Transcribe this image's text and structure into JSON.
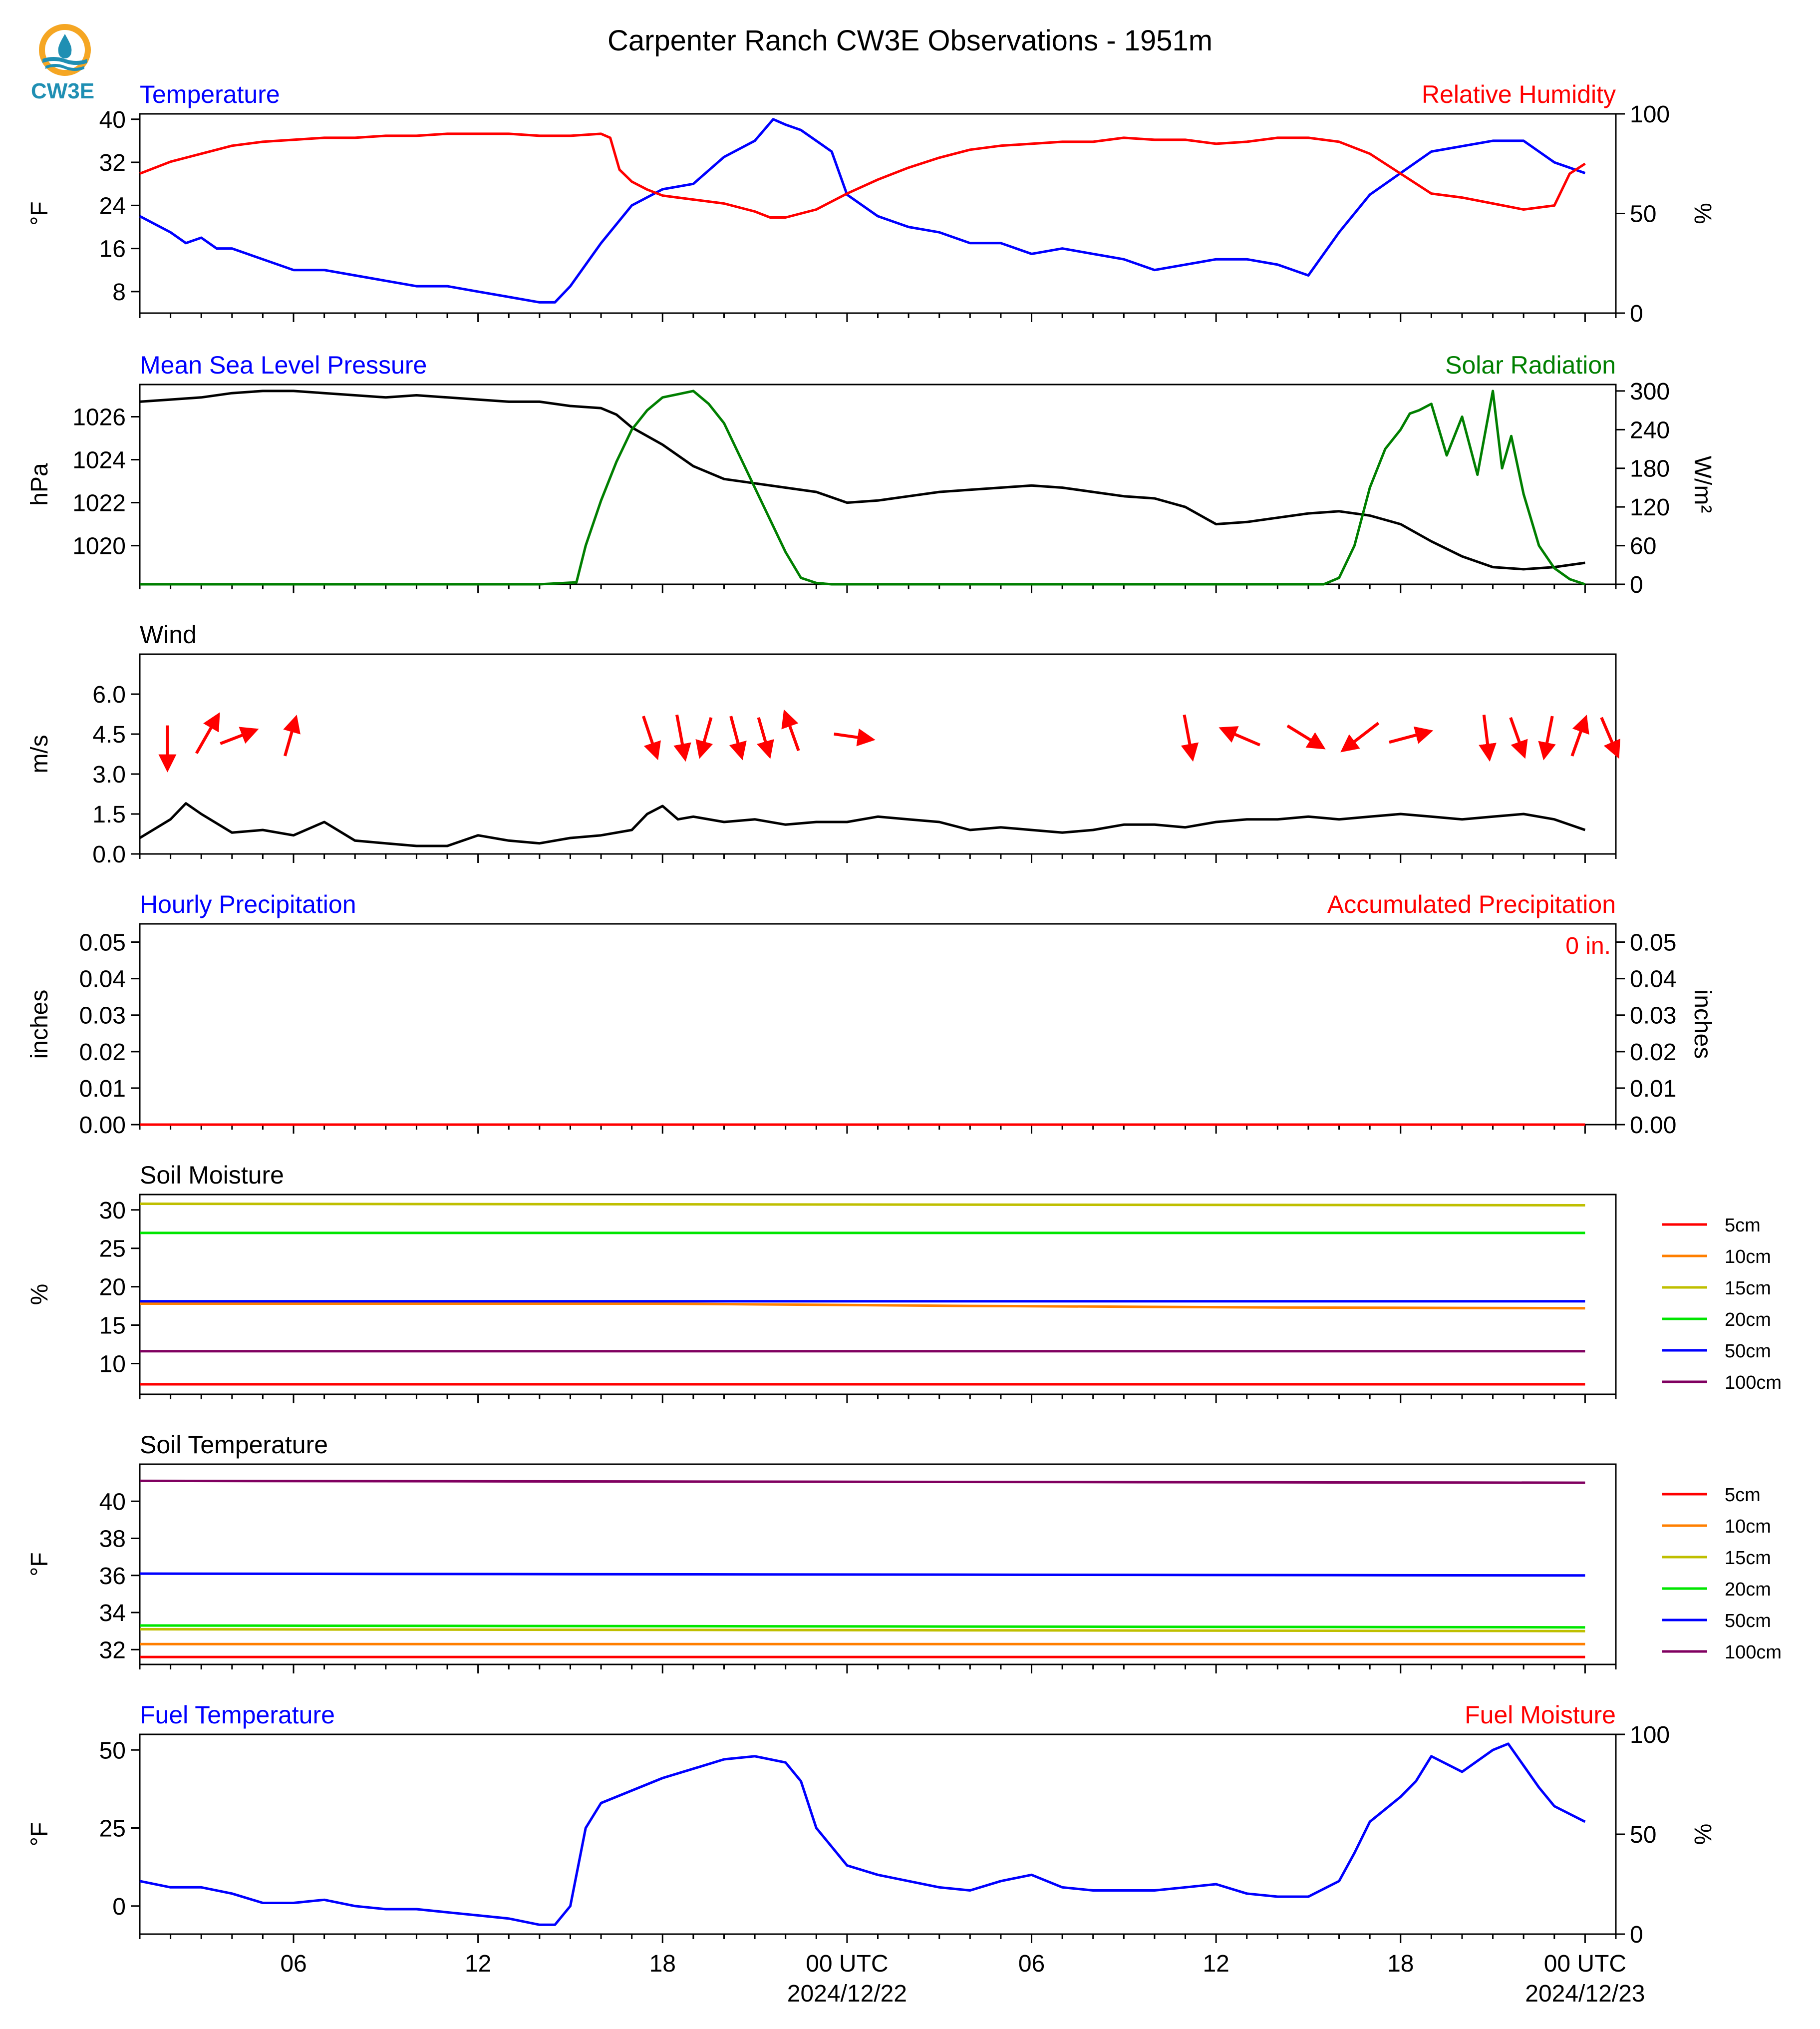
{
  "title": "Carpenter Ranch CW3E Observations - 1951m",
  "logo_text": "CW3E",
  "colors": {
    "blue": "#0000ff",
    "red": "#ff0000",
    "green": "#007f00",
    "black": "#000000",
    "soil": [
      "#ff0000",
      "#ff7f00",
      "#bfbf00",
      "#00e600",
      "#0000ff",
      "#800060"
    ]
  },
  "time_axis": {
    "tick_labels": [
      "06",
      "12",
      "18",
      "00 UTC",
      "06",
      "12",
      "18",
      "00 UTC"
    ],
    "tick_hours": [
      6,
      12,
      18,
      24,
      30,
      36,
      42,
      48
    ],
    "date_labels": [
      "2024/12/22",
      "2024/12/23"
    ],
    "range_hours": [
      1,
      49
    ]
  },
  "chart_data": [
    {
      "type": "line",
      "id": "temp_rh",
      "title_left": "Temperature",
      "title_right": "Relative Humidity",
      "ylabel": "°F",
      "ylabel_right": "%",
      "ylim": [
        4,
        41
      ],
      "yticks": [
        8,
        16,
        24,
        32,
        40
      ],
      "ylim_right": [
        0,
        100
      ],
      "yticks_right": [
        0,
        50,
        100
      ],
      "series": [
        {
          "axis": "left",
          "color": "blue",
          "x": [
            1,
            2,
            2.5,
            3,
            3.5,
            4,
            5,
            6,
            7,
            8,
            9,
            10,
            11,
            12,
            13,
            14,
            14.5,
            15,
            15.5,
            16,
            17,
            18,
            19,
            20,
            21,
            21.6,
            22,
            22.5,
            23,
            23.5,
            24,
            25,
            26,
            27,
            28,
            29,
            30,
            31,
            32,
            33,
            34,
            35,
            36,
            37,
            38,
            39,
            40,
            41,
            42,
            43,
            44,
            45,
            46,
            46.5,
            47,
            48
          ],
          "y": [
            22,
            19,
            17,
            18,
            16,
            16,
            14,
            12,
            12,
            11,
            10,
            9,
            9,
            8,
            7,
            6,
            6,
            9,
            13,
            17,
            24,
            27,
            28,
            33,
            36,
            40,
            39,
            38,
            36,
            34,
            26,
            22,
            20,
            19,
            17,
            17,
            15,
            16,
            15,
            14,
            12,
            13,
            14,
            14,
            13,
            11,
            19,
            26,
            30,
            34,
            35,
            36,
            36,
            34,
            32,
            30
          ]
        },
        {
          "axis": "right",
          "color": "red",
          "x": [
            1,
            2,
            3,
            4,
            5,
            6,
            7,
            8,
            9,
            10,
            11,
            12,
            13,
            14,
            15,
            16,
            16.3,
            16.6,
            17,
            17.5,
            18,
            18.5,
            19,
            20,
            21,
            21.5,
            22,
            22.5,
            23,
            24,
            25,
            26,
            27,
            28,
            29,
            30,
            31,
            32,
            33,
            34,
            35,
            36,
            37,
            38,
            39,
            40,
            41,
            42,
            43,
            44,
            45,
            46,
            47,
            47.5,
            48
          ],
          "y": [
            70,
            76,
            80,
            84,
            86,
            87,
            88,
            88,
            89,
            89,
            90,
            90,
            90,
            89,
            89,
            90,
            88,
            72,
            66,
            62,
            59,
            58,
            57,
            55,
            51,
            48,
            48,
            50,
            52,
            60,
            67,
            73,
            78,
            82,
            84,
            85,
            86,
            86,
            88,
            87,
            87,
            85,
            86,
            88,
            88,
            86,
            80,
            70,
            60,
            58,
            55,
            52,
            54,
            70,
            75
          ]
        }
      ]
    },
    {
      "type": "line",
      "id": "pressure_solar",
      "title_left": "Mean Sea Level Pressure",
      "title_right": "Solar Radiation",
      "ylabel": "hPa",
      "ylabel_right": "W/m²",
      "ylim": [
        1018.2,
        1027.5
      ],
      "yticks": [
        1020,
        1022,
        1024,
        1026
      ],
      "ylim_right": [
        0,
        310
      ],
      "yticks_right": [
        0,
        60,
        120,
        180,
        240,
        300
      ],
      "series": [
        {
          "axis": "left",
          "color": "black",
          "x": [
            1,
            2,
            3,
            4,
            5,
            6,
            7,
            8,
            9,
            10,
            11,
            12,
            13,
            14,
            15,
            16,
            16.5,
            17,
            18,
            19,
            20,
            21,
            22,
            23,
            24,
            25,
            26,
            27,
            28,
            29,
            30,
            31,
            32,
            33,
            34,
            35,
            36,
            37,
            38,
            39,
            40,
            41,
            42,
            43,
            44,
            45,
            46,
            47,
            48
          ],
          "y": [
            1026.7,
            1026.8,
            1026.9,
            1027.1,
            1027.2,
            1027.2,
            1027.1,
            1027.0,
            1026.9,
            1027.0,
            1026.9,
            1026.8,
            1026.7,
            1026.7,
            1026.5,
            1026.4,
            1026.1,
            1025.5,
            1024.7,
            1023.7,
            1023.1,
            1022.9,
            1022.7,
            1022.5,
            1022.0,
            1022.1,
            1022.3,
            1022.5,
            1022.6,
            1022.7,
            1022.8,
            1022.7,
            1022.5,
            1022.3,
            1022.2,
            1021.8,
            1021.0,
            1021.1,
            1021.3,
            1021.5,
            1021.6,
            1021.4,
            1021.0,
            1020.2,
            1019.5,
            1019.0,
            1018.9,
            1019.0,
            1019.2
          ]
        },
        {
          "axis": "right",
          "color": "green",
          "x": [
            1,
            14,
            15.2,
            15.5,
            16,
            16.5,
            17,
            17.5,
            18,
            18.5,
            19,
            19.5,
            20,
            20.5,
            21,
            21.5,
            22,
            22.5,
            23,
            23.5,
            24,
            30,
            39.5,
            40,
            40.5,
            41,
            41.5,
            42,
            42.3,
            42.6,
            43,
            43.5,
            44,
            44.5,
            45,
            45.3,
            45.6,
            46,
            46.5,
            47,
            47.5,
            48
          ],
          "y": [
            0,
            0,
            3,
            60,
            130,
            190,
            240,
            270,
            290,
            295,
            300,
            280,
            250,
            200,
            150,
            100,
            50,
            10,
            2,
            0,
            0,
            0,
            0,
            10,
            60,
            150,
            210,
            240,
            265,
            270,
            280,
            200,
            260,
            170,
            300,
            180,
            230,
            140,
            60,
            25,
            8,
            0
          ]
        }
      ]
    },
    {
      "type": "line",
      "id": "wind",
      "title_left": "Wind",
      "ylabel": "m/s",
      "ylim": [
        0,
        7.5
      ],
      "yticks": [
        "0.0",
        "1.5",
        "3.0",
        "4.5",
        "6.0"
      ],
      "series": [
        {
          "axis": "left",
          "color": "black",
          "x": [
            1,
            2,
            2.5,
            3,
            4,
            5,
            6,
            7,
            8,
            9,
            10,
            11,
            12,
            13,
            14,
            15,
            16,
            17,
            17.5,
            18,
            18.5,
            19,
            20,
            21,
            22,
            23,
            24,
            25,
            26,
            27,
            28,
            29,
            30,
            31,
            32,
            33,
            34,
            35,
            36,
            37,
            38,
            39,
            40,
            41,
            42,
            43,
            44,
            45,
            46,
            47,
            48
          ],
          "y": [
            0.6,
            1.3,
            1.9,
            1.5,
            0.8,
            0.9,
            0.7,
            1.2,
            0.5,
            0.4,
            0.3,
            0.3,
            0.7,
            0.5,
            0.4,
            0.6,
            0.7,
            0.9,
            1.5,
            1.8,
            1.3,
            1.4,
            1.2,
            1.3,
            1.1,
            1.2,
            1.2,
            1.4,
            1.3,
            1.2,
            0.9,
            1.0,
            0.9,
            0.8,
            0.9,
            1.1,
            1.1,
            1.0,
            1.2,
            1.3,
            1.3,
            1.4,
            1.3,
            1.4,
            1.5,
            1.4,
            1.3,
            1.4,
            1.5,
            1.3,
            0.9
          ]
        }
      ],
      "arrows": {
        "x": [
          1.9,
          3.2,
          4.2,
          5.9,
          17.6,
          18.6,
          19.4,
          20.4,
          21.3,
          22.2,
          24.2,
          35.1,
          36.8,
          38.9,
          40.7,
          42.3,
          44.8,
          45.8,
          46.8,
          47.8,
          48.8
        ],
        "u": [
          0.0,
          0.8,
          1.3,
          0.4,
          0.5,
          0.3,
          -0.4,
          0.4,
          0.4,
          -0.5,
          1.4,
          0.3,
          -1.4,
          1.3,
          -1.3,
          1.5,
          0.2,
          0.5,
          -0.3,
          0.5,
          0.6
        ],
        "v": [
          -1.6,
          1.4,
          0.5,
          1.4,
          -1.5,
          -1.6,
          -1.4,
          -1.5,
          -1.4,
          1.4,
          -0.2,
          -1.6,
          0.6,
          -0.8,
          -1.0,
          0.4,
          -1.6,
          -1.4,
          -1.5,
          1.4,
          -1.4
        ],
        "y": [
          4.0,
          4.5,
          4.4,
          4.4,
          4.4,
          4.4,
          4.4,
          4.4,
          4.4,
          4.6,
          4.4,
          4.4,
          4.4,
          4.4,
          4.4,
          4.4,
          4.4,
          4.4,
          4.4,
          4.4,
          4.4
        ]
      }
    },
    {
      "type": "line",
      "id": "precip",
      "title_left": "Hourly Precipitation",
      "title_right": "Accumulated Precipitation",
      "ylabel": "inches",
      "ylabel_right": "inches",
      "ylim": [
        0,
        0.055
      ],
      "yticks": [
        "0.00",
        "0.01",
        "0.02",
        "0.03",
        "0.04",
        "0.05"
      ],
      "ylim_right": [
        0,
        0.055
      ],
      "yticks_right": [
        "0.00",
        "0.01",
        "0.02",
        "0.03",
        "0.04",
        "0.05"
      ],
      "annotation": "0 in.",
      "series": [
        {
          "axis": "left",
          "color": "blue",
          "x": [
            1,
            48
          ],
          "y": [
            0,
            0
          ]
        },
        {
          "axis": "right",
          "color": "red",
          "x": [
            1,
            48
          ],
          "y": [
            0,
            0
          ]
        }
      ]
    },
    {
      "type": "line",
      "id": "soil_moisture",
      "title_left": "Soil Moisture",
      "ylabel": "%",
      "ylim": [
        6,
        32
      ],
      "yticks": [
        10,
        15,
        20,
        25,
        30
      ],
      "legend": [
        "5cm",
        "10cm",
        "15cm",
        "20cm",
        "50cm",
        "100cm"
      ],
      "series": [
        {
          "name": "5cm",
          "x": [
            1,
            48
          ],
          "y": [
            7.3,
            7.3
          ]
        },
        {
          "name": "10cm",
          "x": [
            1,
            18,
            28,
            38,
            48
          ],
          "y": [
            17.8,
            17.8,
            17.5,
            17.3,
            17.2
          ]
        },
        {
          "name": "15cm",
          "x": [
            1,
            24,
            48
          ],
          "y": [
            30.8,
            30.7,
            30.6
          ]
        },
        {
          "name": "20cm",
          "x": [
            1,
            48
          ],
          "y": [
            27.0,
            27.0
          ]
        },
        {
          "name": "50cm",
          "x": [
            1,
            48
          ],
          "y": [
            18.1,
            18.1
          ]
        },
        {
          "name": "100cm",
          "x": [
            1,
            48
          ],
          "y": [
            11.6,
            11.6
          ]
        }
      ]
    },
    {
      "type": "line",
      "id": "soil_temp",
      "title_left": "Soil Temperature",
      "ylabel": "°F",
      "ylim": [
        31.2,
        42.0
      ],
      "yticks": [
        32,
        34,
        36,
        38,
        40
      ],
      "legend": [
        "5cm",
        "10cm",
        "15cm",
        "20cm",
        "50cm",
        "100cm"
      ],
      "series": [
        {
          "name": "5cm",
          "x": [
            1,
            48
          ],
          "y": [
            31.6,
            31.6
          ]
        },
        {
          "name": "10cm",
          "x": [
            1,
            48
          ],
          "y": [
            32.3,
            32.3
          ]
        },
        {
          "name": "15cm",
          "x": [
            1,
            48
          ],
          "y": [
            33.1,
            33.0
          ]
        },
        {
          "name": "20cm",
          "x": [
            1,
            48
          ],
          "y": [
            33.3,
            33.2
          ]
        },
        {
          "name": "50cm",
          "x": [
            1,
            48
          ],
          "y": [
            36.1,
            36.0
          ]
        },
        {
          "name": "100cm",
          "x": [
            1,
            48
          ],
          "y": [
            41.1,
            41.0
          ]
        }
      ]
    },
    {
      "type": "line",
      "id": "fuel",
      "title_left": "Fuel Temperature",
      "title_right": "Fuel Moisture",
      "ylabel": "°F",
      "ylabel_right": "%",
      "ylim": [
        -9,
        55
      ],
      "yticks": [
        0,
        25,
        50
      ],
      "ylim_right": [
        0,
        100
      ],
      "yticks_right": [
        0,
        50,
        100
      ],
      "series": [
        {
          "axis": "left",
          "color": "blue",
          "x": [
            1,
            2,
            3,
            4,
            5,
            6,
            7,
            8,
            9,
            10,
            11,
            12,
            13,
            14,
            14.5,
            15,
            15.5,
            16,
            17,
            18,
            19,
            20,
            21,
            22,
            22.5,
            23,
            24,
            25,
            26,
            27,
            28,
            29,
            30,
            31,
            32,
            33,
            34,
            35,
            36,
            37,
            38,
            39,
            40,
            40.5,
            41,
            42,
            42.5,
            43,
            44,
            45,
            45.5,
            46,
            46.5,
            47,
            48
          ],
          "y": [
            8,
            6,
            6,
            4,
            1,
            1,
            2,
            0,
            -1,
            -1,
            -2,
            -3,
            -4,
            -6,
            -6,
            0,
            25,
            33,
            37,
            41,
            44,
            47,
            48,
            46,
            40,
            25,
            13,
            10,
            8,
            6,
            5,
            8,
            10,
            6,
            5,
            5,
            5,
            6,
            7,
            4,
            3,
            3,
            8,
            17,
            27,
            35,
            40,
            48,
            43,
            50,
            52,
            45,
            38,
            32,
            27
          ]
        }
      ]
    }
  ]
}
